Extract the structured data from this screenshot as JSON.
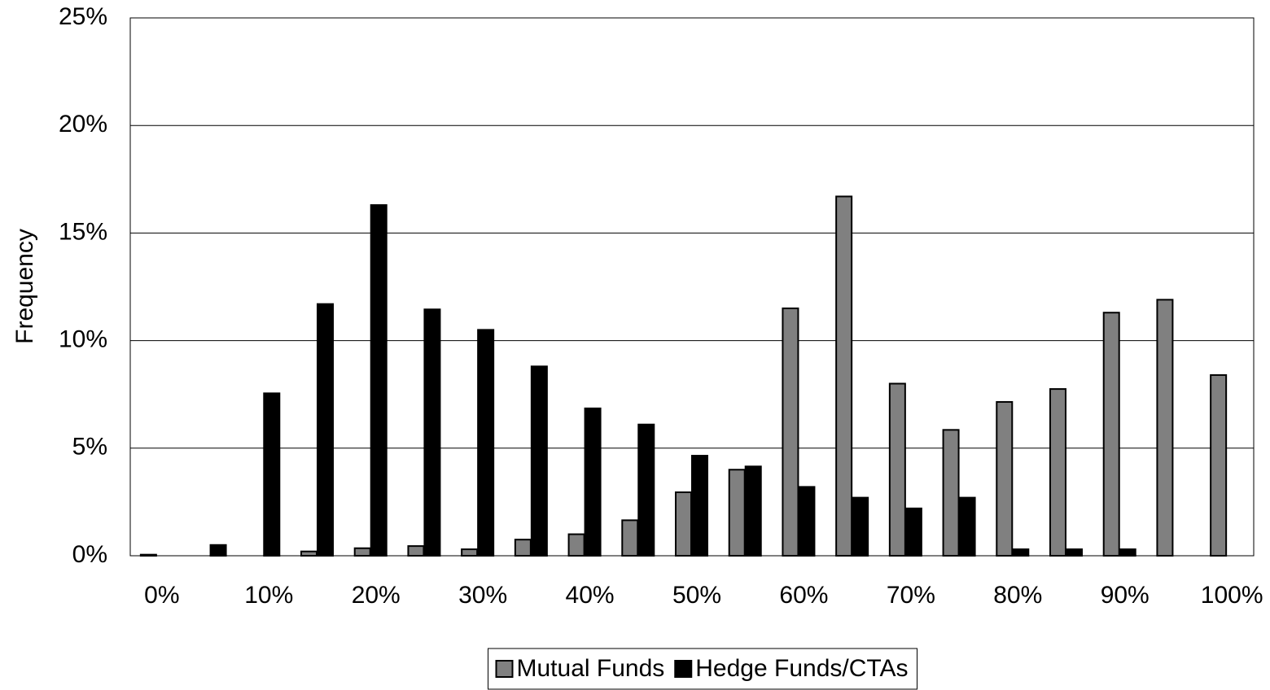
{
  "chart_data": {
    "type": "bar",
    "y_label": "Frequency",
    "categories": [
      "0%",
      null,
      "10%",
      null,
      "20%",
      null,
      "30%",
      null,
      "40%",
      null,
      "50%",
      null,
      "60%",
      null,
      "70%",
      null,
      "80%",
      null,
      "90%",
      null,
      "100%"
    ],
    "series": [
      {
        "name": "Mutual Funds",
        "color": "#808080",
        "values": [
          0.05,
          0,
          0,
          0.2,
          0.35,
          0.45,
          0.3,
          0.75,
          1.0,
          1.65,
          2.95,
          4.0,
          11.5,
          16.7,
          8.0,
          5.85,
          7.15,
          7.75,
          11.3,
          11.9,
          8.4
        ]
      },
      {
        "name": "Hedge Funds/CTAs",
        "color": "#000000",
        "values": [
          0,
          0.5,
          7.55,
          11.7,
          16.3,
          11.45,
          10.5,
          8.8,
          6.85,
          6.1,
          4.65,
          4.15,
          3.2,
          2.7,
          2.2,
          2.7,
          0.3,
          0.3,
          0.3,
          0,
          0
        ]
      }
    ],
    "ylim": [
      0,
      25
    ],
    "yticks": [
      {
        "value": 0,
        "label": "0%"
      },
      {
        "value": 5,
        "label": "5%"
      },
      {
        "value": 10,
        "label": "10%"
      },
      {
        "value": 15,
        "label": "15%"
      },
      {
        "value": 20,
        "label": "20%"
      },
      {
        "value": 25,
        "label": "25%"
      }
    ],
    "grid": true,
    "legend": "bottom"
  }
}
